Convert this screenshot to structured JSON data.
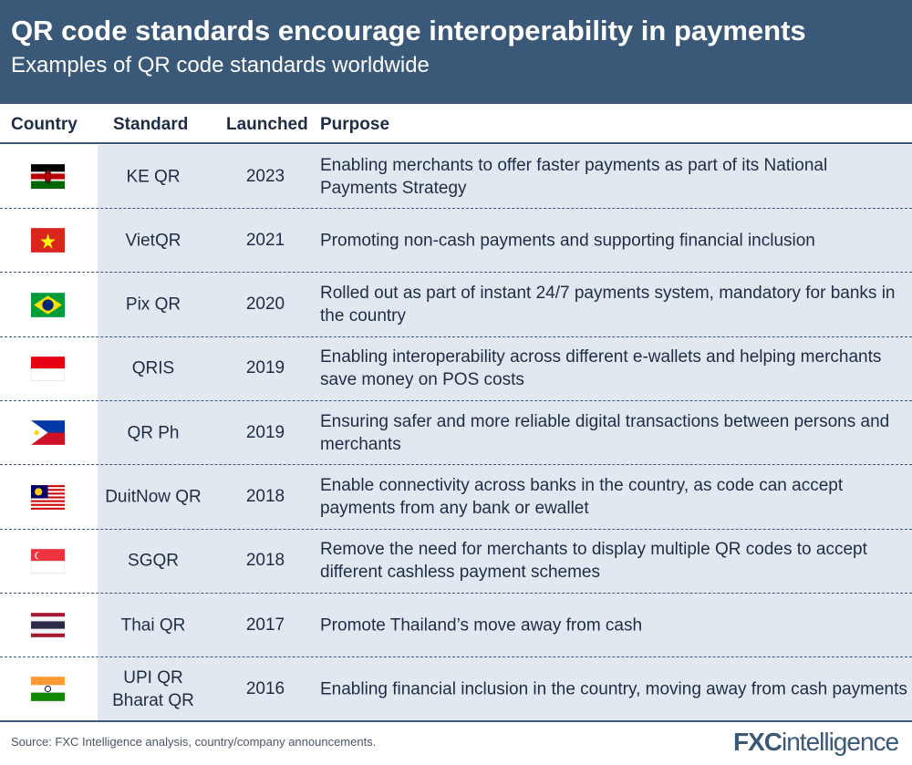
{
  "header": {
    "title": "QR code standards encourage interoperability in payments",
    "subtitle": "Examples of QR code standards worldwide"
  },
  "columns": [
    "Country",
    "Standard",
    "Launched",
    "Purpose"
  ],
  "rows": [
    {
      "flag": "kenya",
      "standard": "KE QR",
      "launched": "2023",
      "purpose": "Enabling merchants to offer faster payments as part of its National Payments Strategy"
    },
    {
      "flag": "vietnam",
      "standard": "VietQR",
      "launched": "2021",
      "purpose": "Promoting non-cash payments and supporting financial inclusion"
    },
    {
      "flag": "brazil",
      "standard": "Pix QR",
      "launched": "2020",
      "purpose": "Rolled out as part of instant 24/7 payments system, mandatory for banks in the country"
    },
    {
      "flag": "indonesia",
      "standard": "QRIS",
      "launched": "2019",
      "purpose": "Enabling interoperability across different e-wallets and helping merchants save money on POS costs"
    },
    {
      "flag": "philippines",
      "standard": "QR Ph",
      "launched": "2019",
      "purpose": "Ensuring safer and more reliable digital transactions between persons and merchants"
    },
    {
      "flag": "malaysia",
      "standard": "DuitNow QR",
      "launched": "2018",
      "purpose": "Enable connectivity across banks in the country, as code can accept payments from any bank or ewallet"
    },
    {
      "flag": "singapore",
      "standard": "SGQR",
      "launched": "2018",
      "purpose": "Remove the need for merchants to display multiple QR codes to accept different cashless payment schemes"
    },
    {
      "flag": "thailand",
      "standard": "Thai QR",
      "launched": "2017",
      "purpose": "Promote Thailand’s move away from cash"
    },
    {
      "flag": "india",
      "standard": "UPI QR Bharat QR",
      "launched": "2016",
      "purpose": "Enabling financial inclusion in the country, moving away from cash payments"
    }
  ],
  "footer": {
    "source": "Source: FXC Intelligence analysis, country/company announcements.",
    "logo": "FXCintelligence"
  },
  "colors": {
    "header_bg": "#3a5878",
    "row_bg": "#e2e8ef"
  }
}
